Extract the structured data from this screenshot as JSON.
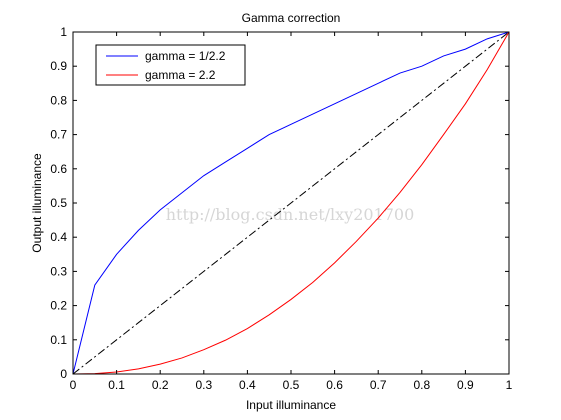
{
  "watermark": "http://blog.csdn.net/lxy201700",
  "chart_data": {
    "type": "line",
    "title": "Gamma correction",
    "xlabel": "Input illuminance",
    "ylabel": "Output illuminance",
    "xlim": [
      0,
      1
    ],
    "ylim": [
      0,
      1
    ],
    "xticks": [
      "0",
      "0.1",
      "0.2",
      "0.3",
      "0.4",
      "0.5",
      "0.6",
      "0.7",
      "0.8",
      "0.9",
      "1"
    ],
    "yticks": [
      "0",
      "0.1",
      "0.2",
      "0.3",
      "0.4",
      "0.5",
      "0.6",
      "0.7",
      "0.8",
      "0.9",
      "1"
    ],
    "grid": false,
    "legend_position": "top-left",
    "x": [
      0,
      0.05,
      0.1,
      0.15,
      0.2,
      0.25,
      0.3,
      0.35,
      0.4,
      0.45,
      0.5,
      0.55,
      0.6,
      0.65,
      0.7,
      0.75,
      0.8,
      0.85,
      0.9,
      0.95,
      1
    ],
    "series": [
      {
        "name": "gamma = 1/2.2",
        "color": "#0000ff",
        "style": "solid",
        "values": [
          0,
          0.26,
          0.35,
          0.42,
          0.48,
          0.53,
          0.58,
          0.62,
          0.66,
          0.7,
          0.73,
          0.76,
          0.79,
          0.82,
          0.85,
          0.88,
          0.9,
          0.93,
          0.95,
          0.98,
          1
        ]
      },
      {
        "name": "gamma = 2.2",
        "color": "#ff0000",
        "style": "solid",
        "values": [
          0,
          0.001,
          0.006,
          0.015,
          0.029,
          0.047,
          0.071,
          0.099,
          0.133,
          0.173,
          0.218,
          0.268,
          0.325,
          0.388,
          0.456,
          0.531,
          0.612,
          0.7,
          0.79,
          0.89,
          1
        ]
      },
      {
        "name": "",
        "color": "#000000",
        "style": "dashdot",
        "values": [
          0,
          0.05,
          0.1,
          0.15,
          0.2,
          0.25,
          0.3,
          0.35,
          0.4,
          0.45,
          0.5,
          0.55,
          0.6,
          0.65,
          0.7,
          0.75,
          0.8,
          0.85,
          0.9,
          0.95,
          1
        ]
      }
    ]
  }
}
